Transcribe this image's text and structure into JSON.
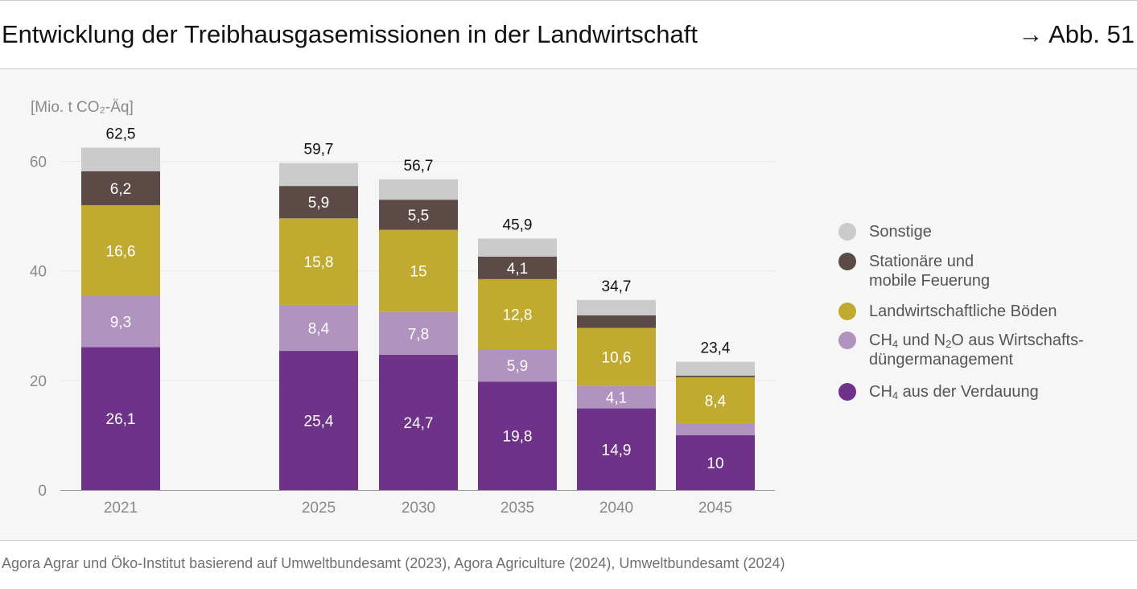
{
  "header": {
    "title": "Entwicklung der Treibhausgasemissionen in der Landwirtschaft",
    "figure_ref": "→ Abb. 51"
  },
  "source": "Agora Agrar und Öko-Institut basierend auf Umweltbundesamt (2023), Agora Agriculture (2024), Umweltbundesamt (2024)",
  "colors": {
    "sonstige": "#cbcbcc",
    "feuerung": "#5b4a46",
    "boeden": "#c1aa30",
    "wirtschaftsduenger": "#b193bf",
    "verdauung": "#6e3388"
  },
  "chart_data": {
    "type": "bar",
    "stacked": true,
    "ylabel": "[Mio. t CO₂-Äq]",
    "ylim": [
      0,
      65
    ],
    "yticks": [
      0,
      20,
      40,
      60
    ],
    "grid": true,
    "categories": [
      "2021",
      "2025",
      "2030",
      "2035",
      "2040",
      "2045"
    ],
    "totals": [
      "62,5",
      "59,7",
      "56,7",
      "45,9",
      "34,7",
      "23,4"
    ],
    "total_values": [
      62.5,
      59.7,
      56.7,
      45.9,
      34.7,
      23.4
    ],
    "series": [
      {
        "key": "verdauung",
        "name": "CH4 aus der Verdauung",
        "values": [
          26.1,
          25.4,
          24.7,
          19.8,
          14.9,
          10
        ],
        "labels": [
          "26,1",
          "25,4",
          "24,7",
          "19,8",
          "14,9",
          "10"
        ]
      },
      {
        "key": "wirtschaftsduenger",
        "name": "CH4 und N2O aus Wirtschaftsdüngermanagement",
        "values": [
          9.3,
          8.4,
          7.8,
          5.9,
          4.1,
          2.2
        ],
        "labels": [
          "9,3",
          "8,4",
          "7,8",
          "5,9",
          "4,1",
          ""
        ]
      },
      {
        "key": "boeden",
        "name": "Landwirtschaftliche Böden",
        "values": [
          16.6,
          15.8,
          15,
          12.8,
          10.6,
          8.4
        ],
        "labels": [
          "16,6",
          "15,8",
          "15",
          "12,8",
          "10,6",
          "8,4"
        ]
      },
      {
        "key": "feuerung",
        "name": "Stationäre und mobile Feuerung",
        "values": [
          6.2,
          5.9,
          5.5,
          4.1,
          2.3,
          0.3
        ],
        "labels": [
          "6,2",
          "5,9",
          "5,5",
          "4,1",
          "",
          ""
        ]
      },
      {
        "key": "sonstige",
        "name": "Sonstige",
        "values": [
          4.3,
          4.2,
          3.7,
          3.3,
          2.8,
          2.5
        ],
        "labels": [
          "",
          "",
          "",
          "",
          "",
          ""
        ]
      }
    ],
    "legend": {
      "position": "right",
      "items": [
        {
          "key": "sonstige",
          "parts": [
            [
              "Sonstige",
              ""
            ]
          ]
        },
        {
          "key": "feuerung",
          "parts": [
            [
              "Stationäre und",
              ""
            ]
          ],
          "line2": [
            [
              "mobile Feuerung",
              ""
            ]
          ]
        },
        {
          "key": "boeden",
          "parts": [
            [
              "Landwirtschaftliche Böden",
              ""
            ]
          ]
        },
        {
          "key": "wirtschaftsduenger",
          "parts": [
            [
              "CH",
              ""
            ],
            [
              "4",
              "sub"
            ],
            [
              " und N",
              ""
            ],
            [
              "2",
              "sub"
            ],
            [
              "O aus Wirtschafts-",
              ""
            ]
          ],
          "line2": [
            [
              "düngermanagement",
              ""
            ]
          ]
        },
        {
          "key": "verdauung",
          "parts": [
            [
              "CH",
              ""
            ],
            [
              "4",
              "sub"
            ],
            [
              " aus der Verdauung",
              ""
            ]
          ]
        }
      ]
    }
  }
}
